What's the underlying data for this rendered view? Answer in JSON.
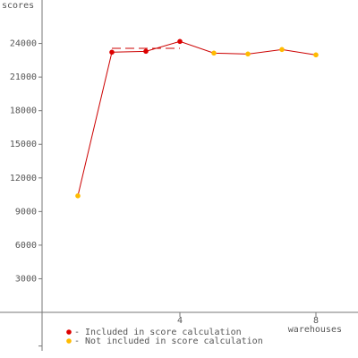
{
  "chart_data": {
    "type": "line",
    "y_label": "scores",
    "x_label": "warehouses",
    "x": [
      1,
      2,
      3,
      4,
      5,
      6,
      7,
      8
    ],
    "values": [
      10400,
      23220,
      23300,
      24180,
      23140,
      23060,
      23460,
      22980
    ],
    "line_color": "#cc0000",
    "legend": [
      {
        "name": "- Included in score calculation",
        "color": "#dd0000"
      },
      {
        "name": "- Not included in score calculation",
        "color": "#ffbb00"
      }
    ],
    "point_group": [
      1,
      0,
      0,
      0,
      1,
      1,
      1,
      1
    ],
    "score": 23570,
    "score_range": [
      2,
      4
    ],
    "xlim": [
      0,
      9
    ],
    "xticks": [
      4,
      8
    ],
    "ylim": [
      -3000,
      27000
    ],
    "yticks": [
      3000,
      6000,
      9000,
      12000,
      15000,
      18000,
      21000,
      24000
    ]
  }
}
